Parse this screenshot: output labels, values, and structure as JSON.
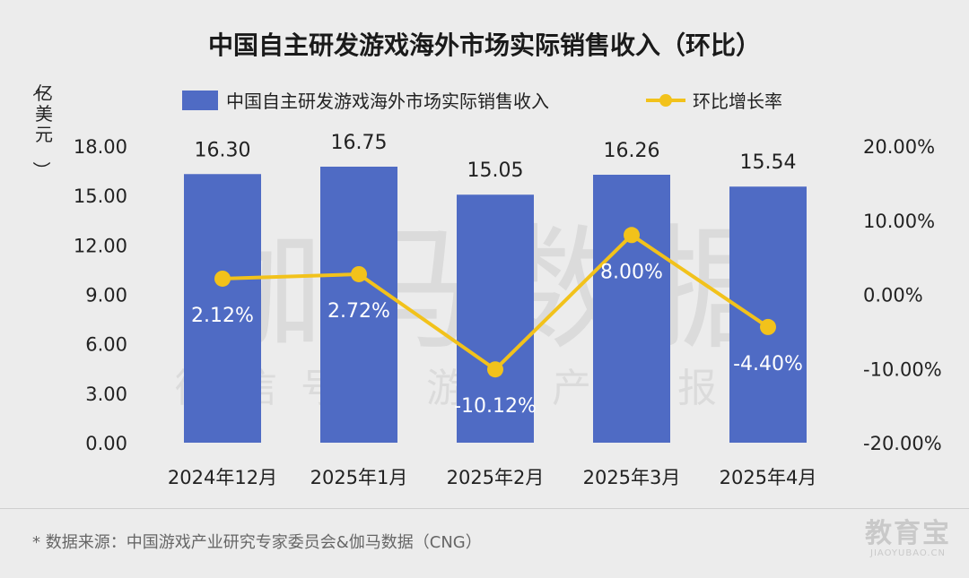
{
  "chart_data": {
    "type": "bar",
    "title": "中国自主研发游戏海外市场实际销售收入（环比）",
    "categories": [
      "2024年12月",
      "2025年1月",
      "2025年2月",
      "2025年3月",
      "2025年4月"
    ],
    "series": [
      {
        "name": "中国自主研发游戏海外市场实际销售收入",
        "type": "bar",
        "axis": "left",
        "color": "#4f6bc4",
        "values": [
          16.3,
          16.75,
          15.05,
          16.26,
          15.54
        ],
        "labels": [
          "16.30",
          "16.75",
          "15.05",
          "16.26",
          "15.54"
        ]
      },
      {
        "name": "环比增长率",
        "type": "line",
        "axis": "right",
        "color": "#f2c21b",
        "values": [
          2.12,
          2.72,
          -10.12,
          8.0,
          -4.4
        ],
        "labels": [
          "2.12%",
          "2.72%",
          "-10.12%",
          "8.00%",
          "-4.40%"
        ]
      }
    ],
    "y_left": {
      "label": "（亿美元）",
      "range": [
        0,
        18
      ],
      "ticks": [
        "0.00",
        "3.00",
        "6.00",
        "9.00",
        "12.00",
        "15.00",
        "18.00"
      ]
    },
    "y_right": {
      "range": [
        -20,
        20
      ],
      "ticks": [
        "-20.00%",
        "-10.00%",
        "0.00%",
        "10.00%",
        "20.00%"
      ]
    },
    "legend_position": "top-center",
    "grid": false
  },
  "watermark": {
    "main": "伽马数据",
    "sub": "微信号：游戏产业报告"
  },
  "footnote": "* 数据来源：中国游戏产业研究专家委员会&伽马数据（CNG）",
  "logo": {
    "main": "教育宝",
    "sub": "JIAOYUBAO.CN"
  }
}
